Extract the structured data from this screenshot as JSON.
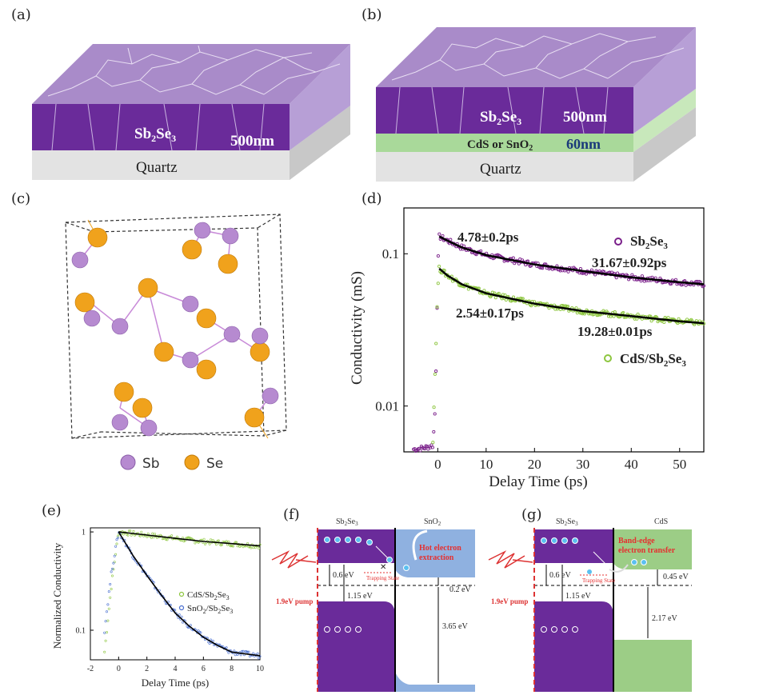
{
  "panels": {
    "a": {
      "label": "(a)",
      "film": "Sb2Se3",
      "film_main": "Sb",
      "film_sub1": "2",
      "film_mid": "Se",
      "film_sub2": "3",
      "thickness": "500nm",
      "substrate": "Quartz",
      "colors": {
        "film": "#6a2b9a",
        "film_top": "#a98bc9",
        "substrate": "#d9d9d9"
      }
    },
    "b": {
      "label": "(b)",
      "film_main": "Sb",
      "film_sub1": "2",
      "film_mid": "Se",
      "film_sub2": "3",
      "thickness": "500nm",
      "buffer_pre": "CdS or SnO",
      "buffer_sub": "2",
      "buffer_thickness": "60nm",
      "substrate": "Quartz",
      "colors": {
        "buffer": "#a9d99a",
        "buffer_thickness_text": "#1a3a7a"
      }
    },
    "c": {
      "label": "(c)",
      "legend": [
        {
          "name": "Sb",
          "color": "#b68ad0"
        },
        {
          "name": "Se",
          "color": "#f0a21c"
        }
      ]
    },
    "d": {
      "label": "(d)",
      "annotations": {
        "sb_fast": "4.78±0.2ps",
        "sb_slow": "31.67±0.92ps",
        "cds_fast": "2.54±0.17ps",
        "cds_slow": "19.28±0.01ps"
      }
    },
    "e": {
      "label": "(e)"
    },
    "f": {
      "label": "(f)",
      "left_name_main": "Sb",
      "left_name_s1": "2",
      "left_name_mid": "Se",
      "left_name_s2": "3",
      "right_name_main": "SnO",
      "right_name_sub": "2",
      "pump": "1.9eV pump",
      "trap": "Trapping State",
      "extraction": "Hot electron extraction",
      "extraction_line1": "Hot electron",
      "extraction_line2": "extraction",
      "e1": "0.6 eV",
      "e2": "1.15 eV",
      "e3": "0.2 eV",
      "e4": "3.65 eV",
      "colors": {
        "sb2se3": "#6a2b9a",
        "sno2": "#8fb1e0"
      }
    },
    "g": {
      "label": "(g)",
      "left_name_main": "Sb",
      "left_name_s1": "2",
      "left_name_mid": "Se",
      "left_name_s2": "3",
      "right_name": "CdS",
      "pump": "1.9eV pump",
      "trap": "Trapping State",
      "transfer_line1": "Band-edge",
      "transfer_line2": "electron transfer",
      "e1": "0.6 eV",
      "e2": "1.15 eV",
      "e3": "0.45 eV",
      "e4": "2.17 eV",
      "colors": {
        "cds": "#9ccd86"
      }
    }
  },
  "chart_data": [
    {
      "type": "scatter",
      "panel": "d",
      "xlabel": "Delay Time (ps)",
      "ylabel": "Conductivity (mS)",
      "xlim": [
        -7,
        55
      ],
      "ylim": [
        0.005,
        0.2
      ],
      "yscale": "log",
      "xticks": [
        "0",
        "10",
        "20",
        "30",
        "40",
        "50"
      ],
      "yticks": [
        "0.01",
        "0.1"
      ],
      "legend_position": "right",
      "series": [
        {
          "name": "Sb2Se3",
          "legend_main": "Sb",
          "legend_s1": "2",
          "legend_mid": "Se",
          "legend_s2": "3",
          "color": "#7a1f8a",
          "marker": "open-circle",
          "peak": 0.13,
          "points": [
            [
              -5,
              0.0052
            ],
            [
              -3,
              0.0053
            ],
            [
              -1,
              0.0055
            ],
            [
              -0.5,
              0.01
            ],
            [
              0,
              0.08
            ],
            [
              0.3,
              0.13
            ],
            [
              2,
              0.122
            ],
            [
              5,
              0.11
            ],
            [
              10,
              0.098
            ],
            [
              20,
              0.085
            ],
            [
              30,
              0.077
            ],
            [
              40,
              0.07
            ],
            [
              50,
              0.065
            ],
            [
              55,
              0.063
            ]
          ]
        },
        {
          "name": "CdS/Sb2Se3",
          "legend_main": "CdS/Sb",
          "legend_s1": "2",
          "legend_mid": "Se",
          "legend_s2": "3",
          "color": "#8dc63f",
          "marker": "open-circle",
          "peak": 0.08,
          "points": [
            [
              -1,
              0.006
            ],
            [
              0,
              0.06
            ],
            [
              0.3,
              0.08
            ],
            [
              2,
              0.072
            ],
            [
              5,
              0.063
            ],
            [
              10,
              0.055
            ],
            [
              20,
              0.047
            ],
            [
              30,
              0.042
            ],
            [
              40,
              0.039
            ],
            [
              50,
              0.036
            ],
            [
              55,
              0.035
            ]
          ]
        }
      ]
    },
    {
      "type": "scatter",
      "panel": "e",
      "xlabel": "Delay Time (ps)",
      "ylabel": "Normalized Conductivity",
      "xlim": [
        -2,
        10
      ],
      "ylim": [
        0.05,
        1.1
      ],
      "yscale": "log",
      "xticks": [
        "-2",
        "0",
        "2",
        "4",
        "6",
        "8",
        "10"
      ],
      "yticks": [
        "0.1",
        "1"
      ],
      "legend_position": "center-right",
      "series": [
        {
          "name": "CdS/Sb2Se3",
          "legend_main": "CdS/Sb",
          "legend_s1": "2",
          "legend_mid": "Se",
          "legend_s2": "3",
          "color": "#8dc63f",
          "points": [
            [
              -1,
              0.06
            ],
            [
              -0.5,
              0.3
            ],
            [
              0,
              1.0
            ],
            [
              2,
              0.93
            ],
            [
              4,
              0.86
            ],
            [
              6,
              0.8
            ],
            [
              8,
              0.76
            ],
            [
              10,
              0.72
            ]
          ]
        },
        {
          "name": "SnO2/Sb2Se3",
          "legend_main": "SnO",
          "legend_s1": "2",
          "legend_mid": "/Sb",
          "legend_s2": "2",
          "legend_end": "Se",
          "legend_s3": "3",
          "color": "#4a6fd0",
          "points": [
            [
              -1,
              0.1
            ],
            [
              -0.5,
              0.4
            ],
            [
              0,
              1.0
            ],
            [
              1,
              0.58
            ],
            [
              2,
              0.36
            ],
            [
              3,
              0.23
            ],
            [
              4,
              0.15
            ],
            [
              5,
              0.11
            ],
            [
              6,
              0.085
            ],
            [
              7,
              0.07
            ],
            [
              8,
              0.06
            ],
            [
              10,
              0.055
            ]
          ]
        }
      ]
    }
  ]
}
